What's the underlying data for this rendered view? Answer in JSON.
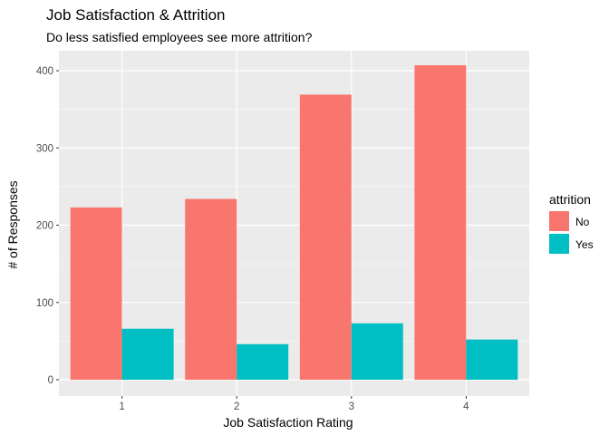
{
  "chart_data": {
    "type": "bar",
    "title": "Job Satisfaction & Attrition",
    "subtitle": "Do less satisfied employees see more attrition?",
    "xlabel": "Job Satisfaction Rating",
    "ylabel": "# of Responses",
    "categories": [
      "1",
      "2",
      "3",
      "4"
    ],
    "ylim": [
      0,
      420
    ],
    "yticks": [
      0,
      100,
      200,
      300,
      400
    ],
    "series": [
      {
        "name": "No",
        "values": [
          223,
          234,
          369,
          407
        ],
        "color": "#f8766d"
      },
      {
        "name": "Yes",
        "values": [
          66,
          46,
          73,
          52
        ],
        "color": "#00bfc4"
      }
    ],
    "legend_title": "attrition",
    "legend_position": "right",
    "grid": true,
    "panel_background": "#ebebeb"
  }
}
